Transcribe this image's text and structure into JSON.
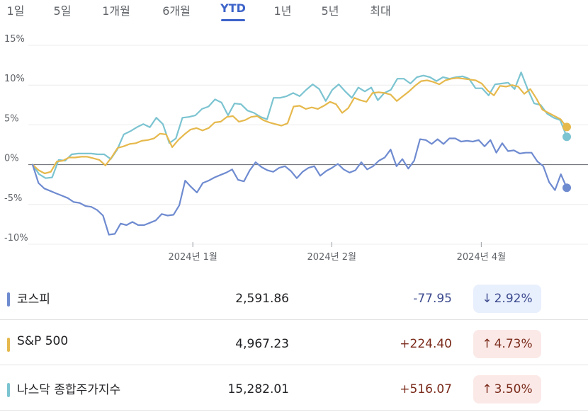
{
  "tabs": [
    {
      "label": "1일",
      "active": false
    },
    {
      "label": "5일",
      "active": false
    },
    {
      "label": "1개월",
      "active": false
    },
    {
      "label": "6개월",
      "active": false
    },
    {
      "label": "YTD",
      "active": true
    },
    {
      "label": "1년",
      "active": false
    },
    {
      "label": "5년",
      "active": false
    },
    {
      "label": "최대",
      "active": false
    }
  ],
  "chart_data": {
    "type": "line",
    "title": "",
    "xlabel": "",
    "ylabel": "",
    "ylim": [
      -10,
      15
    ],
    "yticks": [
      15,
      10,
      5,
      0,
      -5,
      -10
    ],
    "ytick_labels": [
      "15%",
      "10%",
      "5%",
      "0%",
      "-5%",
      "-10%"
    ],
    "x_index_range": [
      0,
      100
    ],
    "x_ticks": [
      {
        "index": 30,
        "label": "2024년 1월"
      },
      {
        "index": 56,
        "label": "2024년 2월"
      },
      {
        "index": 84,
        "label": "2024년 4월"
      }
    ],
    "grid": "horizontal",
    "zero_line": true,
    "series": [
      {
        "name": "코스피",
        "color": "#6f8bd0",
        "values": [
          0,
          -2.3,
          -3.0,
          -3.3,
          -3.6,
          -3.9,
          -4.2,
          -4.7,
          -4.8,
          -5.2,
          -5.3,
          -5.7,
          -6.4,
          -8.8,
          -8.7,
          -7.4,
          -7.6,
          -7.2,
          -7.6,
          -7.6,
          -7.3,
          -7.0,
          -6.2,
          -6.4,
          -6.3,
          -5.1,
          -2.0,
          -2.8,
          -3.5,
          -2.3,
          -2.0,
          -1.6,
          -1.3,
          -1.0,
          -0.6,
          -1.9,
          -2.1,
          -0.7,
          0.3,
          -0.3,
          -0.7,
          -0.9,
          -0.4,
          -0.2,
          -0.8,
          -1.7,
          -0.9,
          -0.4,
          -0.2,
          -1.4,
          -0.8,
          -0.4,
          0.1,
          -0.6,
          -1.0,
          -0.7,
          0.3,
          -0.6,
          -0.2,
          0.5,
          0.9,
          1.9,
          -0.2,
          0.7,
          -0.5,
          0.5,
          3.2,
          3.1,
          2.6,
          3.2,
          2.6,
          3.3,
          3.3,
          2.9,
          3.0,
          2.9,
          3.1,
          2.3,
          3.1,
          1.5,
          2.7,
          1.7,
          1.8,
          1.4,
          1.5,
          1.5,
          0.4,
          -0.2,
          -2.2,
          -3.2,
          -1.2,
          -2.9
        ],
        "end_value": -2.9
      },
      {
        "name": "S&P 500",
        "color": "#e6b94d",
        "values": [
          0,
          -0.7,
          -1.1,
          -0.9,
          0.4,
          0.5,
          0.9,
          0.9,
          1.0,
          1.0,
          0.8,
          0.6,
          -0.1,
          0.9,
          2.1,
          2.3,
          2.6,
          2.7,
          3.0,
          3.1,
          3.3,
          3.9,
          3.8,
          2.2,
          3.1,
          3.8,
          4.4,
          4.6,
          4.3,
          4.6,
          5.3,
          5.4,
          6.0,
          6.1,
          5.4,
          5.6,
          6.0,
          6.1,
          5.6,
          5.3,
          5.1,
          4.9,
          5.2,
          7.3,
          7.4,
          7.0,
          7.2,
          7.0,
          7.4,
          7.9,
          7.6,
          6.5,
          7.1,
          8.4,
          8.1,
          7.9,
          9.0,
          9.1,
          9.0,
          8.8,
          8.0,
          8.6,
          9.2,
          9.9,
          10.5,
          10.6,
          10.4,
          10.1,
          10.6,
          10.8,
          10.9,
          10.8,
          10.7,
          10.6,
          10.2,
          9.3,
          8.7,
          9.9,
          9.8,
          10.0,
          9.8,
          8.9,
          9.5,
          8.3,
          6.9,
          6.5,
          6.1,
          5.7,
          4.7
        ],
        "end_value": 4.73
      },
      {
        "name": "나스닥 종합주가지수",
        "color": "#7cc4d1",
        "values": [
          0,
          -1.2,
          -1.7,
          -1.6,
          0.6,
          0.5,
          1.3,
          1.4,
          1.4,
          1.4,
          1.3,
          1.3,
          0.7,
          1.9,
          3.8,
          4.2,
          4.7,
          5.1,
          4.7,
          5.9,
          5.1,
          2.7,
          3.3,
          5.9,
          6.0,
          6.2,
          7.0,
          7.3,
          8.2,
          7.8,
          6.2,
          7.7,
          7.6,
          6.8,
          6.5,
          6.0,
          5.7,
          8.4,
          8.4,
          8.6,
          9.0,
          8.6,
          9.4,
          10.1,
          9.5,
          8.0,
          9.4,
          10.1,
          9.2,
          8.4,
          9.7,
          9.2,
          9.7,
          8.1,
          9.0,
          9.4,
          10.8,
          10.8,
          10.2,
          11.0,
          11.2,
          11.0,
          10.5,
          11.0,
          10.8,
          11.0,
          11.1,
          10.8,
          9.6,
          9.6,
          8.7,
          10.1,
          10.2,
          10.3,
          9.5,
          11.6,
          9.5,
          7.7,
          7.5,
          6.4,
          5.9,
          5.6,
          3.5
        ],
        "end_value": 3.5
      }
    ]
  },
  "table": {
    "rows": [
      {
        "name": "코스피",
        "value": "2,591.86",
        "change": "-77.95",
        "pct": "2.92%",
        "direction": "down",
        "marker_color": "#6f8bd0",
        "change_color": "#3c4a8e",
        "badge_bg": "#e8effd",
        "badge_fg": "#3c4a8e",
        "arrow": "↓"
      },
      {
        "name": "S&P 500",
        "value": "4,967.23",
        "change": "+224.40",
        "pct": "4.73%",
        "direction": "up",
        "marker_color": "#e6b94d",
        "change_color": "#7a2a1a",
        "badge_bg": "#fbe9e7",
        "badge_fg": "#7a2a1a",
        "arrow": "↑"
      },
      {
        "name": "나스닥 종합주가지수",
        "value": "15,282.01",
        "change": "+516.07",
        "pct": "3.50%",
        "direction": "up",
        "marker_color": "#7cc4d1",
        "change_color": "#7a2a1a",
        "badge_bg": "#fbe9e7",
        "badge_fg": "#7a2a1a",
        "arrow": "↑"
      }
    ]
  }
}
